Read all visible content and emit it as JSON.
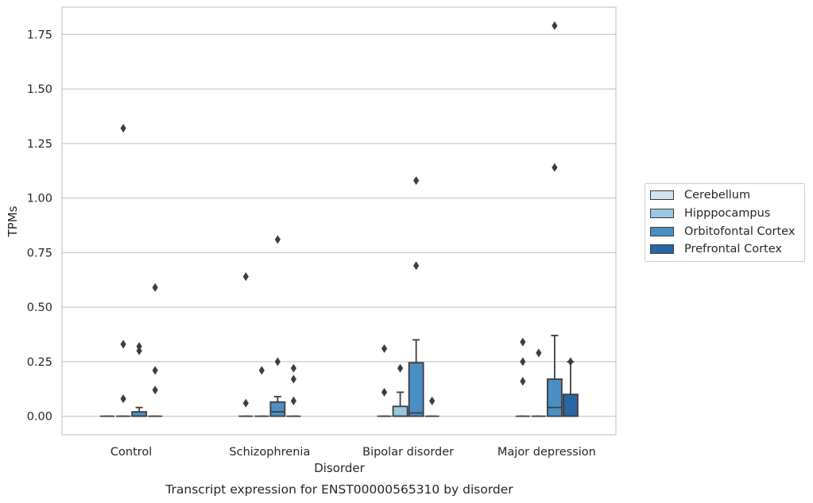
{
  "chart_data": {
    "type": "box",
    "caption": "Transcript expression for ENST00000565310 by disorder",
    "xlabel": "Disorder",
    "ylabel": "TPMs",
    "ylim": [
      -0.085,
      1.875
    ],
    "yticks": [
      0.0,
      0.25,
      0.5,
      0.75,
      1.0,
      1.25,
      1.5,
      1.75
    ],
    "ytick_labels": [
      "0.00",
      "0.25",
      "0.50",
      "0.75",
      "1.00",
      "1.25",
      "1.50",
      "1.75"
    ],
    "categories": [
      "Control",
      "Schizophrenia",
      "Bipolar disorder",
      "Major depression"
    ],
    "grid": "horizontal",
    "legend_position": "right",
    "series": [
      {
        "name": "Cerebellum",
        "color": "#d2e2ef",
        "boxes": [
          {
            "q1": 0,
            "median": 0,
            "q3": 0,
            "whisker_low": 0,
            "whisker_high": 0,
            "outliers": []
          },
          {
            "q1": 0,
            "median": 0,
            "q3": 0,
            "whisker_low": 0,
            "whisker_high": 0,
            "outliers": [
              0.06,
              0.64
            ]
          },
          {
            "q1": 0,
            "median": 0,
            "q3": 0,
            "whisker_low": 0,
            "whisker_high": 0,
            "outliers": [
              0.11,
              0.31
            ]
          },
          {
            "q1": 0,
            "median": 0,
            "q3": 0,
            "whisker_low": 0,
            "whisker_high": 0,
            "outliers": [
              0.16,
              0.25,
              0.34
            ]
          }
        ]
      },
      {
        "name": "Hipppocampus",
        "color": "#9ac8e0",
        "boxes": [
          {
            "q1": 0,
            "median": 0,
            "q3": 0,
            "whisker_low": 0,
            "whisker_high": 0,
            "outliers": [
              0.08,
              0.33,
              1.32
            ]
          },
          {
            "q1": 0,
            "median": 0,
            "q3": 0,
            "whisker_low": 0,
            "whisker_high": 0,
            "outliers": [
              0.21
            ]
          },
          {
            "q1": 0,
            "median": 0,
            "q3": 0.045,
            "whisker_low": 0,
            "whisker_high": 0.11,
            "outliers": [
              0.22
            ]
          },
          {
            "q1": 0,
            "median": 0,
            "q3": 0,
            "whisker_low": 0,
            "whisker_high": 0,
            "outliers": [
              0.29
            ]
          }
        ]
      },
      {
        "name": "Orbitofontal Cortex",
        "color": "#4a8fc4",
        "boxes": [
          {
            "q1": 0,
            "median": 0,
            "q3": 0.02,
            "whisker_low": 0,
            "whisker_high": 0.04,
            "outliers": [
              0.3,
              0.32
            ]
          },
          {
            "q1": 0,
            "median": 0.02,
            "q3": 0.065,
            "whisker_low": 0,
            "whisker_high": 0.09,
            "outliers": [
              0.25,
              0.81
            ]
          },
          {
            "q1": 0,
            "median": 0.015,
            "q3": 0.245,
            "whisker_low": 0,
            "whisker_high": 0.35,
            "outliers": [
              0.69,
              1.08
            ]
          },
          {
            "q1": 0,
            "median": 0.04,
            "q3": 0.17,
            "whisker_low": 0,
            "whisker_high": 0.37,
            "outliers": [
              1.14,
              1.79
            ]
          }
        ]
      },
      {
        "name": "Prefrontal Cortex",
        "color": "#2966a6",
        "boxes": [
          {
            "q1": 0,
            "median": 0,
            "q3": 0,
            "whisker_low": 0,
            "whisker_high": 0,
            "outliers": [
              0.12,
              0.21,
              0.59
            ]
          },
          {
            "q1": 0,
            "median": 0,
            "q3": 0,
            "whisker_low": 0,
            "whisker_high": 0,
            "outliers": [
              0.07,
              0.17,
              0.22
            ]
          },
          {
            "q1": 0,
            "median": 0,
            "q3": 0,
            "whisker_low": 0,
            "whisker_high": 0,
            "outliers": [
              0.07
            ]
          },
          {
            "q1": 0,
            "median": 0,
            "q3": 0.1,
            "whisker_low": 0,
            "whisker_high": 0.25,
            "outliers": [
              0.25
            ]
          }
        ]
      }
    ]
  }
}
